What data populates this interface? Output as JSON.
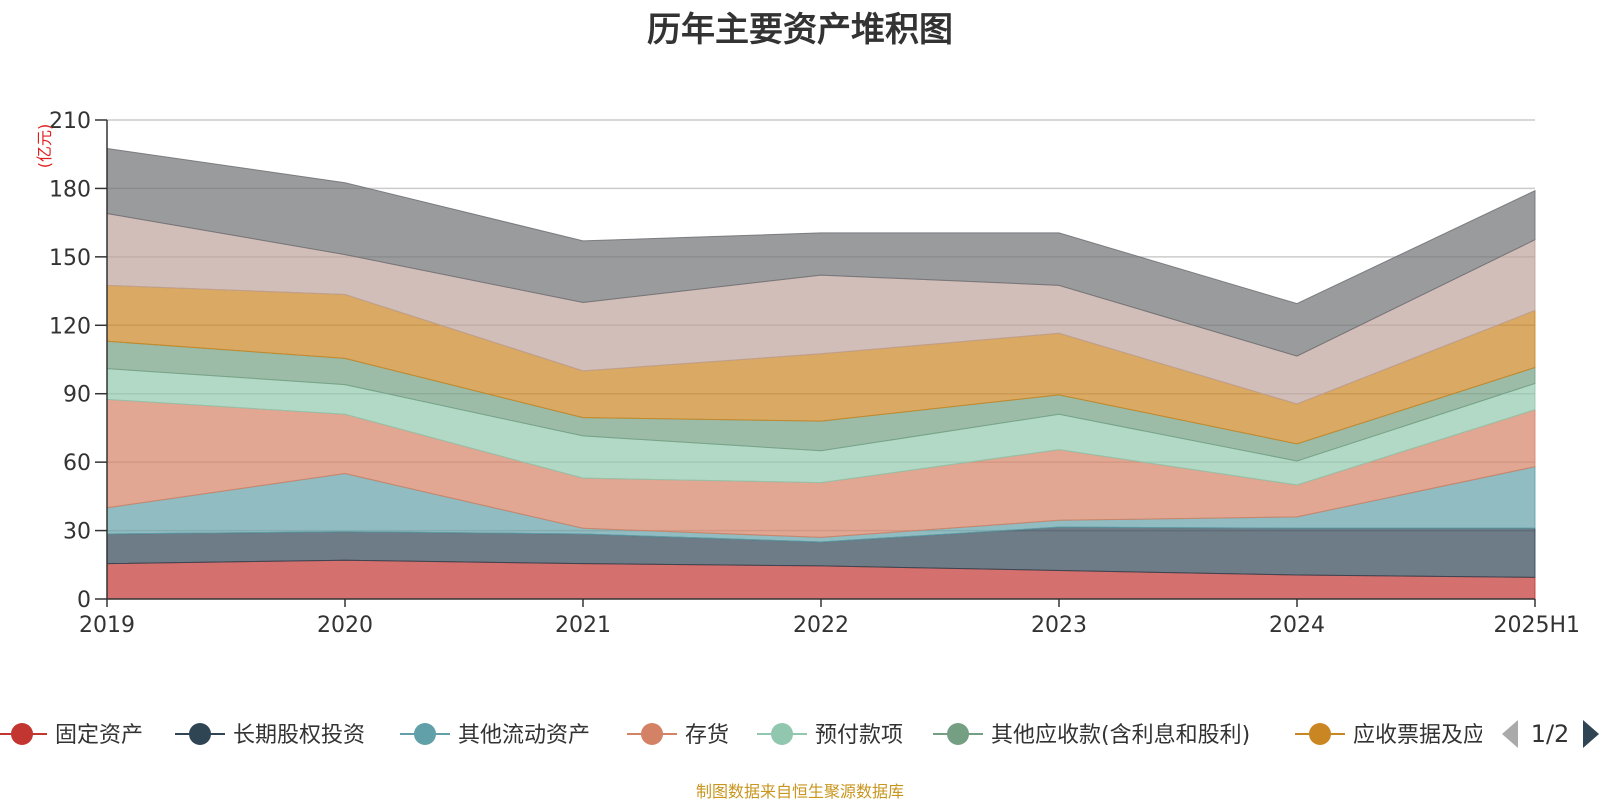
{
  "chart_data": {
    "type": "area",
    "title": "历年主要资产堆积图",
    "ylabel": "(亿元)",
    "ylim": [
      0,
      210
    ],
    "yticks": [
      0,
      30,
      60,
      90,
      120,
      150,
      180,
      210
    ],
    "categories": [
      "2019",
      "2020",
      "2021",
      "2022",
      "2023",
      "2024",
      "2025H1"
    ],
    "stacked": true,
    "grid": true,
    "legend_position": "bottom",
    "series": [
      {
        "name": "固定资产",
        "color": "#c23531",
        "values": [
          15.5,
          17,
          15.5,
          14.5,
          12.5,
          10.5,
          9.5
        ]
      },
      {
        "name": "长期股权投资",
        "color": "#2f4554",
        "values": [
          13,
          12.5,
          13,
          10.5,
          19,
          20.5,
          21.5
        ]
      },
      {
        "name": "其他流动资产",
        "color": "#61a0a8",
        "values": [
          11.5,
          25.5,
          2.5,
          2,
          3,
          5,
          27
        ]
      },
      {
        "name": "存货",
        "color": "#d48265",
        "values": [
          47.5,
          26,
          22,
          24,
          31,
          14,
          25
        ]
      },
      {
        "name": "预付款项",
        "color": "#91c7ae",
        "values": [
          13.5,
          13,
          18.5,
          14,
          15.5,
          10.5,
          11.5
        ]
      },
      {
        "name": "其他应收款(含利息和股利)",
        "color": "#749f83",
        "values": [
          12,
          11.5,
          8,
          13,
          8.5,
          7.5,
          7
        ]
      },
      {
        "name": "应收票据及应收账款",
        "color": "#ca8622",
        "values": [
          24.5,
          28,
          20.5,
          29.5,
          27,
          17.5,
          25
        ]
      },
      {
        "name": "",
        "color": "#bda29a",
        "values": [
          31.5,
          17.5,
          30,
          34.5,
          21,
          21,
          31
        ]
      },
      {
        "name": "",
        "color": "#6e7074",
        "values": [
          28.5,
          31.5,
          27,
          18.5,
          23,
          23,
          21.5
        ]
      }
    ],
    "legend_visible": [
      "固定资产",
      "长期股权投资",
      "其他流动资产",
      "存货",
      "预付款项",
      "其他应收款(含利息和股利)",
      "应收票据及应"
    ],
    "legend_page": "1/2"
  },
  "source_note": "制图数据来自恒生聚源数据库"
}
